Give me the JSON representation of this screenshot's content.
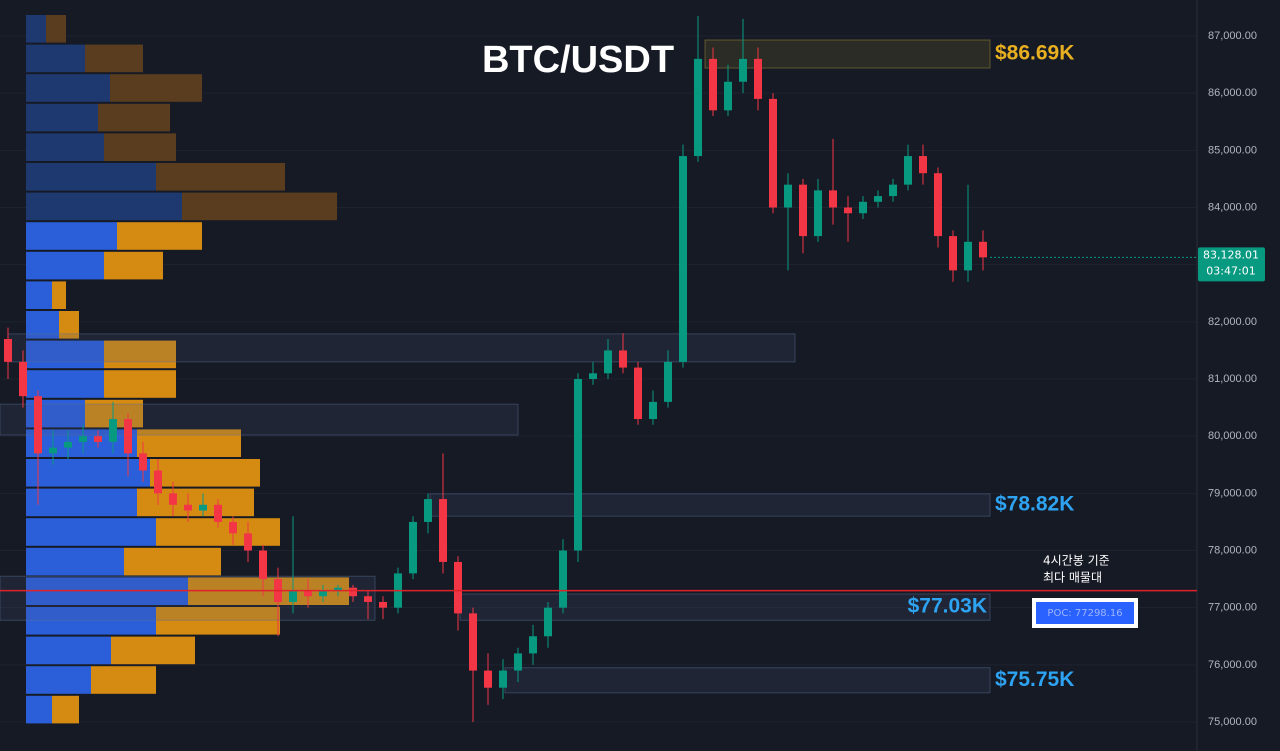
{
  "chart_data": {
    "type": "candlestick",
    "title": "BTC/USDT",
    "ylim": [
      74493,
      87630
    ],
    "yticks": [
      {
        "value": 75000,
        "label": "75,000.00"
      },
      {
        "value": 76000,
        "label": "76,000.00"
      },
      {
        "value": 77000,
        "label": "77,000.00"
      },
      {
        "value": 78000,
        "label": "78,000.00"
      },
      {
        "value": 79000,
        "label": "79,000.00"
      },
      {
        "value": 80000,
        "label": "80,000.00"
      },
      {
        "value": 81000,
        "label": "81,000.00"
      },
      {
        "value": 82000,
        "label": "82,000.00"
      },
      {
        "value": 83000,
        "label": "83,000.00"
      },
      {
        "value": 84000,
        "label": "84,000.00"
      },
      {
        "value": 85000,
        "label": "85,000.00"
      },
      {
        "value": 86000,
        "label": "86,000.00"
      },
      {
        "value": 87000,
        "label": "87,000.00"
      }
    ],
    "grid": true,
    "up_color": "#089981",
    "down_color": "#f23645",
    "open": [
      81700,
      81300,
      80700,
      79700,
      79800,
      79900,
      80000,
      79900,
      80300,
      79700,
      79400,
      79000,
      78800,
      78700,
      78800,
      78500,
      78300,
      78000,
      77500,
      77100,
      77300,
      77200,
      77300,
      77350,
      77200,
      77100,
      77000,
      77600,
      78500,
      78900,
      77800,
      76900,
      75900,
      75600,
      75900,
      76200,
      76500,
      77000,
      78000,
      81000,
      81100,
      81500,
      81200,
      80300,
      80600,
      81300,
      84900,
      86600,
      85700,
      86200,
      86600,
      85900,
      84000,
      84400,
      83500,
      84300,
      84000,
      83900,
      84100,
      84200,
      84400,
      84900,
      84600,
      83500,
      82900,
      83400
    ],
    "high": [
      81900,
      81500,
      80800,
      80100,
      80100,
      80200,
      80100,
      80600,
      80400,
      79900,
      79600,
      79200,
      79000,
      79000,
      78900,
      78600,
      78500,
      78100,
      77700,
      78600,
      77500,
      77400,
      77400,
      77400,
      77300,
      77200,
      77700,
      78600,
      79000,
      79700,
      77900,
      77000,
      76200,
      76100,
      76300,
      76700,
      77100,
      78200,
      81100,
      81300,
      81700,
      81800,
      81300,
      80800,
      81500,
      85100,
      87350,
      86800,
      86500,
      87300,
      86800,
      86000,
      84600,
      84500,
      84500,
      85200,
      84200,
      84200,
      84300,
      84500,
      85100,
      85100,
      84700,
      83600,
      84400,
      83600
    ],
    "low": [
      81000,
      80500,
      78800,
      79500,
      79600,
      79700,
      79800,
      79700,
      79300,
      79200,
      78800,
      78600,
      78500,
      78600,
      78400,
      78100,
      77800,
      77200,
      76500,
      76900,
      77000,
      77100,
      77200,
      77100,
      76800,
      76800,
      76900,
      77500,
      78300,
      77600,
      76600,
      75000,
      75300,
      75400,
      75700,
      76000,
      76300,
      76900,
      77800,
      80900,
      81000,
      81100,
      80200,
      80200,
      80500,
      81200,
      84800,
      85600,
      85600,
      86000,
      85700,
      83900,
      82900,
      83200,
      83400,
      83700,
      83400,
      83800,
      84000,
      84100,
      84300,
      84400,
      83300,
      82700,
      82700,
      82900
    ],
    "close": [
      81300,
      80700,
      79700,
      79800,
      79900,
      80000,
      79900,
      80300,
      79700,
      79400,
      79000,
      78800,
      78700,
      78800,
      78500,
      78300,
      78000,
      77500,
      77100,
      77300,
      77200,
      77300,
      77350,
      77200,
      77100,
      77000,
      77600,
      78500,
      78900,
      77800,
      76900,
      75900,
      75600,
      75900,
      76200,
      76500,
      77000,
      78000,
      81000,
      81100,
      81500,
      81200,
      80300,
      80600,
      81300,
      84900,
      86600,
      85700,
      86200,
      86600,
      85900,
      84000,
      84400,
      83500,
      84300,
      84000,
      83900,
      84100,
      84200,
      84400,
      84900,
      84600,
      83500,
      82900,
      83400,
      83128.01
    ],
    "last_price": {
      "value": 83128.01,
      "label": "83,128.01"
    },
    "countdown": "03:47:01",
    "volume_profile": {
      "buy": [
        20,
        59,
        84,
        72,
        78,
        130,
        156,
        91,
        78,
        26,
        33,
        78,
        78,
        59,
        111,
        124,
        111,
        130,
        98,
        162,
        130,
        85,
        65,
        26
      ],
      "sell": [
        20,
        58,
        92,
        72,
        72,
        129,
        155,
        85,
        59,
        14,
        20,
        72,
        72,
        58,
        104,
        110,
        117,
        124,
        97,
        161,
        124,
        84,
        65,
        27
      ],
      "buy_colors": [
        "#1e3870",
        "#1e3870",
        "#1e3870",
        "#1e3870",
        "#1e3870",
        "#1e3870",
        "#1e3870",
        "#2b5fd9",
        "#2b5fd9",
        "#2b5fd9",
        "#2b5fd9",
        "#2b5fd9",
        "#2b5fd9",
        "#2b5fd9",
        "#2b5fd9",
        "#2b5fd9",
        "#2b5fd9",
        "#2b5fd9",
        "#2b5fd9",
        "#2b5fd9",
        "#2b5fd9",
        "#2b5fd9",
        "#2b5fd9",
        "#2b5fd9"
      ],
      "sell_colors": [
        "#5a3d1e",
        "#5a3d1e",
        "#5a3d1e",
        "#5a3d1e",
        "#5a3d1e",
        "#5a3d1e",
        "#5a3d1e",
        "#d58a12",
        "#d58a12",
        "#d58a12",
        "#d58a12",
        "#d58a12",
        "#d58a12",
        "#d58a12",
        "#d58a12",
        "#d58a12",
        "#d58a12",
        "#d58a12",
        "#d58a12",
        "#d58a12",
        "#d58a12",
        "#d58a12",
        "#d58a12",
        "#d58a12"
      ]
    },
    "zones": [
      {
        "label": "$86.69K",
        "range": [
          86440,
          86930
        ],
        "color": "#e8b021"
      },
      {
        "label": "$78.82K",
        "range": [
          78600,
          78990
        ],
        "color": "#2ea3f2"
      },
      {
        "label": "$77.03K",
        "range": [
          76780,
          77240
        ],
        "color": "#2ea3f2"
      },
      {
        "label": "$75.75K",
        "range": [
          75510,
          75950
        ],
        "color": "#2ea3f2"
      },
      {
        "range": [
          81300,
          81790
        ]
      },
      {
        "range": [
          80020,
          80560
        ]
      },
      {
        "range": [
          76780,
          77550
        ]
      }
    ],
    "poc": {
      "value": 77298.16,
      "label": "POC: 77298.16",
      "color": "#e0222b"
    },
    "annotation": [
      "4시간봉 기준",
      "최다 매물대"
    ]
  }
}
